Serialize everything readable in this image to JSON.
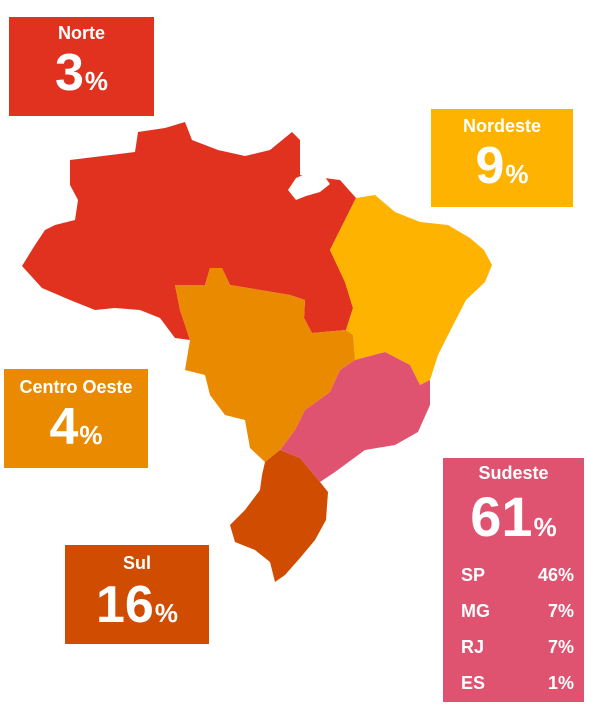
{
  "colors": {
    "norte": "#e0321f",
    "nordeste": "#fdb300",
    "centro_oeste": "#ea8a00",
    "sudeste": "#df5370",
    "sul": "#d04c00"
  },
  "regions": {
    "norte": {
      "name": "Norte",
      "value": "3",
      "unit": "%"
    },
    "nordeste": {
      "name": "Nordeste",
      "value": "9",
      "unit": "%"
    },
    "centro_oeste": {
      "name": "Centro Oeste",
      "value": "4",
      "unit": "%"
    },
    "sul": {
      "name": "Sul",
      "value": "16",
      "unit": "%"
    },
    "sudeste": {
      "name": "Sudeste",
      "value": "61",
      "unit": "%",
      "states": [
        {
          "code": "SP",
          "value": "46%"
        },
        {
          "code": "MG",
          "value": "7%"
        },
        {
          "code": "RJ",
          "value": "7%"
        },
        {
          "code": "ES",
          "value": "1%"
        }
      ]
    }
  }
}
